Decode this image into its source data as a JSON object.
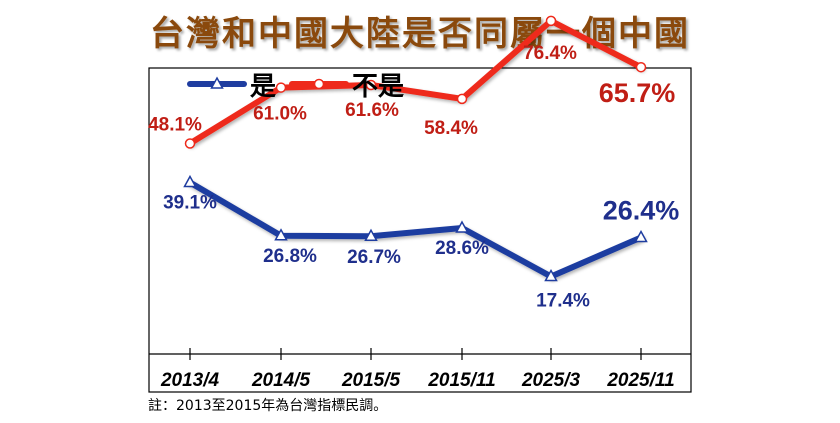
{
  "chart_data": {
    "type": "line",
    "title": "台灣和中國大陸是否同屬一個中國",
    "categories": [
      "2013/4",
      "2014/5",
      "2015/5",
      "2015/11",
      "2025/3",
      "2025/11"
    ],
    "ylim": [
      0,
      100
    ],
    "grid": false,
    "legend": "top-left",
    "series": [
      {
        "name": "是",
        "color": "#1f3da0",
        "marker": "triangle",
        "values": [
          39.1,
          26.8,
          26.7,
          28.6,
          17.4,
          26.4
        ],
        "labels": [
          "39.1%",
          "26.8%",
          "26.7%",
          "28.6%",
          "17.4%",
          "26.4%"
        ]
      },
      {
        "name": "不是",
        "color": "#ee2a1b",
        "marker": "circle",
        "values": [
          48.1,
          61.0,
          61.6,
          58.4,
          76.4,
          65.7
        ],
        "labels": [
          "48.1%",
          "61.0%",
          "61.6%",
          "58.4%",
          "76.4%",
          "65.7%"
        ]
      }
    ],
    "note": "註：2013至2015年為台灣指標民調。"
  }
}
